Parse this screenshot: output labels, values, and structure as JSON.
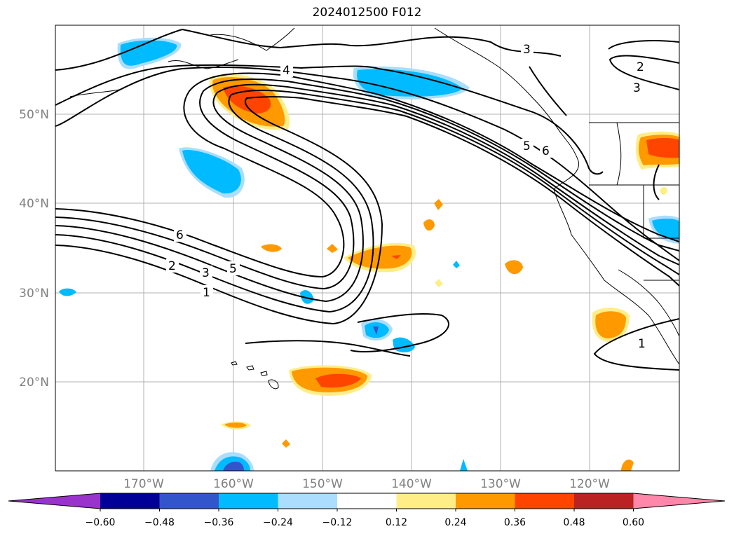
{
  "title": "2024012500 F012",
  "lat_labels": [
    "50°N",
    "40°N",
    "30°N",
    "20°N"
  ],
  "lon_labels": [
    "170°W",
    "160°W",
    "150°W",
    "140°W",
    "130°W",
    "120°W"
  ],
  "contour_labels": [
    "4",
    "3",
    "2",
    "3",
    "5",
    "6",
    "6",
    "2",
    "3",
    "5",
    "1",
    "1"
  ],
  "colorbar": {
    "colors": [
      "#9933cc",
      "#000099",
      "#3355cc",
      "#00bbff",
      "#aaddff",
      "#ffffff",
      "#ffee88",
      "#ff9900",
      "#ff4400",
      "#bb2222",
      "#ff88aa"
    ],
    "ticks": [
      "−0.60",
      "−0.48",
      "−0.36",
      "−0.24",
      "−0.12",
      "0.12",
      "0.24",
      "0.36",
      "0.48",
      "0.60"
    ]
  }
}
